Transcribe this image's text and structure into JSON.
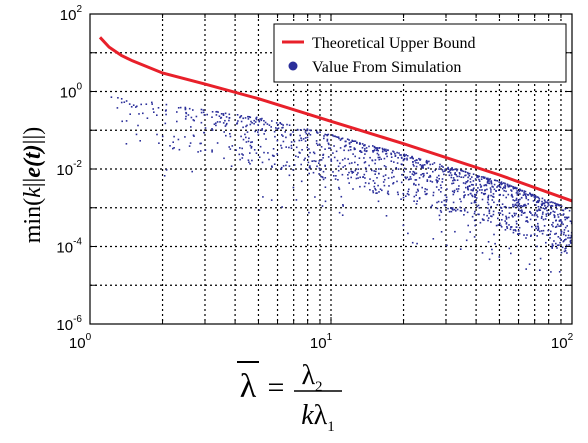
{
  "chart_data": {
    "type": "scatter",
    "x_scale": "log",
    "y_scale": "log",
    "xlim": [
      1,
      100
    ],
    "ylim": [
      1e-06,
      100
    ],
    "grid": true,
    "legend_position": "top-right",
    "x_ticks": [
      {
        "base": "10",
        "exp": "0",
        "value": 1
      },
      {
        "base": "10",
        "exp": "1",
        "value": 10
      },
      {
        "base": "10",
        "exp": "2",
        "value": 100
      }
    ],
    "y_ticks": [
      {
        "base": "10",
        "exp": "2",
        "value": 100
      },
      {
        "base": "10",
        "exp": "0",
        "value": 1
      },
      {
        "base": "10",
        "exp": "-2",
        "value": 0.01
      },
      {
        "base": "10",
        "exp": "-4",
        "value": 0.0001
      },
      {
        "base": "10",
        "exp": "-6",
        "value": 1e-06
      }
    ],
    "ylabel": {
      "prefix": "min(",
      "k": "k",
      "bars_open": "||",
      "e_t": "e(t)",
      "bars_close": "||)"
    },
    "xlabel": {
      "lambda_bar": "λ",
      "equals": "=",
      "numerator": "λ",
      "numerator_sub": "2",
      "denominator_k": "k",
      "denominator_lambda": "λ",
      "denominator_sub": "1"
    },
    "series": [
      {
        "name": "Theoretical Upper Bound",
        "kind": "line",
        "color": "#e8202a",
        "x": [
          1.1,
          1.2,
          1.35,
          1.5,
          2,
          3,
          5,
          10,
          20,
          50,
          100
        ],
        "y": [
          25,
          14,
          8.5,
          6.2,
          3.0,
          1.55,
          0.65,
          0.17,
          0.045,
          0.007,
          0.0015
        ]
      },
      {
        "name": "Value From Simulation",
        "kind": "scatter",
        "color": "#2b2f9a",
        "upper_envelope": {
          "x": [
            1,
            2,
            5,
            10,
            20,
            50,
            100
          ],
          "y": [
            0.9,
            0.5,
            0.22,
            0.08,
            0.025,
            0.005,
            0.0009
          ]
        },
        "typical_spread_decades": 1.2,
        "outlier_floor": {
          "x": [
            1,
            10,
            100
          ],
          "y": [
            0.01,
            0.0003,
            1.5e-05
          ]
        },
        "point_count": 1400
      }
    ]
  }
}
